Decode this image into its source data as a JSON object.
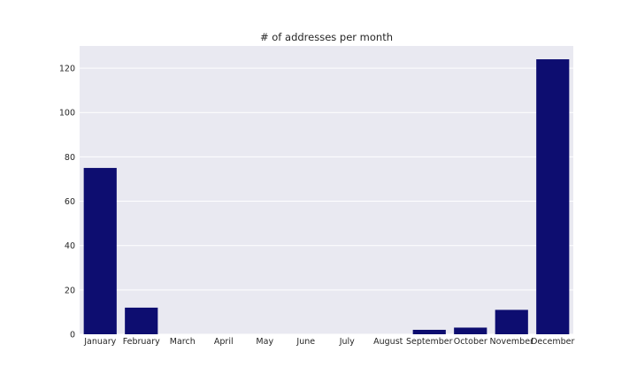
{
  "chart_data": {
    "type": "bar",
    "title": "# of addresses per month",
    "xlabel": "",
    "ylabel": "",
    "categories": [
      "January",
      "February",
      "March",
      "April",
      "May",
      "June",
      "July",
      "August",
      "September",
      "October",
      "November",
      "December"
    ],
    "values": [
      75,
      12,
      0,
      0,
      0,
      0,
      0,
      0,
      2,
      3,
      11,
      124
    ],
    "ylim": [
      0,
      130
    ],
    "yticks": [
      0,
      20,
      40,
      60,
      80,
      100,
      120
    ],
    "grid": true,
    "legend": "none",
    "colors": {
      "bar": "#0d0d70",
      "plot_background": "#e9e9f1",
      "grid": "#ffffff",
      "text": "#262626"
    }
  }
}
